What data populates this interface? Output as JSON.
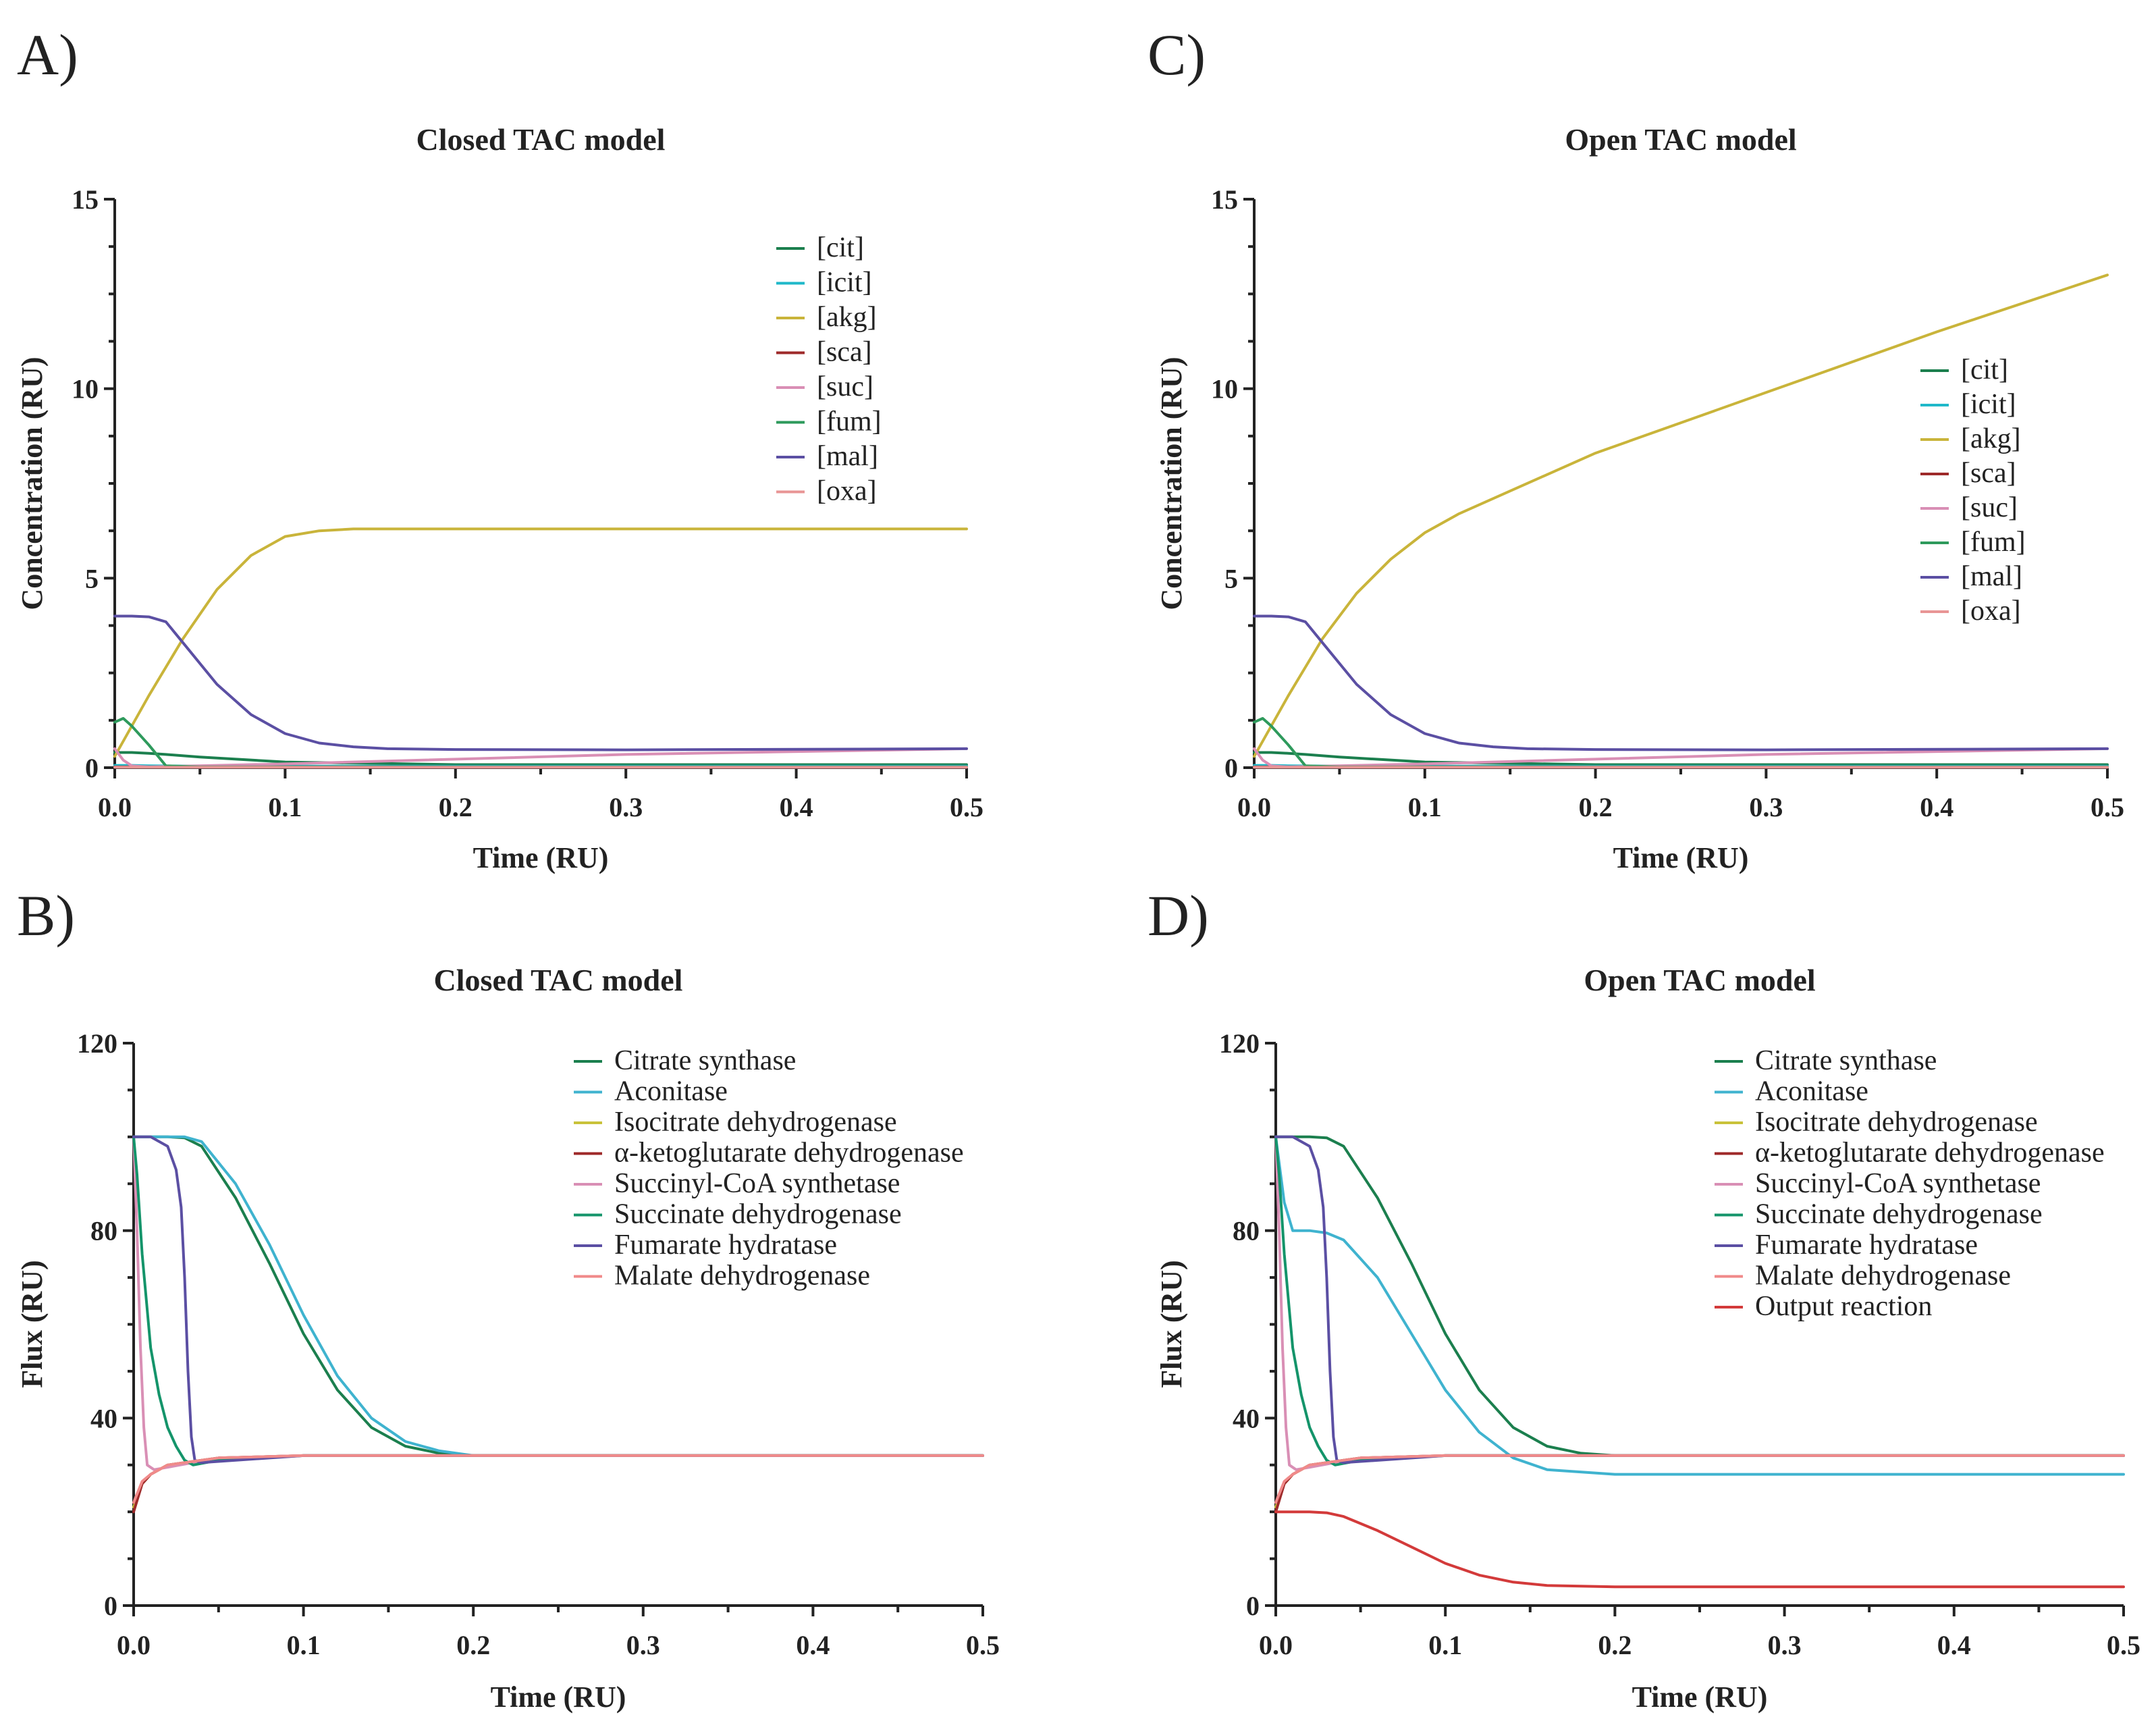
{
  "figure": {
    "panel_letters": [
      "A)",
      "B)",
      "C)",
      "D)"
    ]
  },
  "chart_data": [
    {
      "panel": "A)",
      "type": "line",
      "title": "Closed TAC model",
      "xlabel": "Time (RU)",
      "ylabel": "Concentration (RU)",
      "xlim": [
        0,
        0.5
      ],
      "ylim": [
        0,
        15
      ],
      "xticks": [
        0,
        0.1,
        0.2,
        0.3,
        0.4,
        0.5
      ],
      "xtick_labels": [
        "0.0",
        "0.1",
        "0.2",
        "0.3",
        "0.4",
        "0.5"
      ],
      "yticks": [
        0,
        5,
        10,
        15
      ],
      "ytick_labels": [
        "0",
        "5",
        "10",
        "15"
      ],
      "legend_position": "top-right",
      "series": [
        {
          "name": "[cit]",
          "color": "#1b7f4e",
          "x": [
            0,
            0.005,
            0.01,
            0.02,
            0.03,
            0.05,
            0.1,
            0.2,
            0.5
          ],
          "values": [
            0.4,
            0.4,
            0.4,
            0.38,
            0.35,
            0.28,
            0.15,
            0.08,
            0.08
          ]
        },
        {
          "name": "[icit]",
          "color": "#1fb8c9",
          "x": [
            0,
            0.01,
            0.02,
            0.05,
            0.1,
            0.5
          ],
          "values": [
            0.06,
            0.06,
            0.05,
            0.04,
            0.04,
            0.04
          ]
        },
        {
          "name": "[akg]",
          "color": "#c9b43a",
          "x": [
            0,
            0.02,
            0.04,
            0.06,
            0.08,
            0.1,
            0.12,
            0.14,
            0.16,
            0.2,
            0.3,
            0.5
          ],
          "values": [
            0.3,
            1.9,
            3.4,
            4.7,
            5.6,
            6.1,
            6.25,
            6.3,
            6.3,
            6.3,
            6.3,
            6.3
          ]
        },
        {
          "name": "[sca]",
          "color": "#9e2a2a",
          "x": [
            0,
            0.01,
            0.05,
            0.1,
            0.5
          ],
          "values": [
            0.02,
            0.02,
            0.02,
            0.02,
            0.02
          ]
        },
        {
          "name": "[suc]",
          "color": "#d98fb5",
          "x": [
            0,
            0.005,
            0.01,
            0.02,
            0.1,
            0.3,
            0.5
          ],
          "values": [
            0.5,
            0.2,
            0.05,
            0.02,
            0.1,
            0.35,
            0.5
          ]
        },
        {
          "name": "[fum]",
          "color": "#2e9a5c",
          "x": [
            0,
            0.005,
            0.01,
            0.02,
            0.03,
            0.05,
            0.5
          ],
          "values": [
            1.2,
            1.3,
            1.1,
            0.6,
            0.05,
            0.02,
            0.02
          ]
        },
        {
          "name": "[mal]",
          "color": "#5b4fa3",
          "x": [
            0,
            0.01,
            0.02,
            0.03,
            0.04,
            0.06,
            0.08,
            0.1,
            0.12,
            0.14,
            0.16,
            0.2,
            0.3,
            0.5
          ],
          "values": [
            4.0,
            4.0,
            3.98,
            3.85,
            3.3,
            2.2,
            1.4,
            0.9,
            0.65,
            0.55,
            0.5,
            0.48,
            0.47,
            0.5
          ]
        },
        {
          "name": "[oxa]",
          "color": "#e89595",
          "x": [
            0,
            0.01,
            0.05,
            0.1,
            0.5
          ],
          "values": [
            0.01,
            0.01,
            0.01,
            0.01,
            0.01
          ]
        }
      ]
    },
    {
      "panel": "B)",
      "type": "line",
      "title": "Closed TAC model",
      "xlabel": "Time (RU)",
      "ylabel": "Flux (RU)",
      "xlim": [
        0,
        0.5
      ],
      "ylim": [
        0,
        120
      ],
      "xticks": [
        0,
        0.1,
        0.2,
        0.3,
        0.4,
        0.5
      ],
      "xtick_labels": [
        "0.0",
        "0.1",
        "0.2",
        "0.3",
        "0.4",
        "0.5"
      ],
      "yticks": [
        0,
        40,
        80,
        120
      ],
      "ytick_labels": [
        "0",
        "40",
        "80",
        "120"
      ],
      "legend_position": "top-right",
      "series": [
        {
          "name": "Citrate synthase",
          "color": "#1b7f4e",
          "x": [
            0,
            0.02,
            0.03,
            0.04,
            0.06,
            0.08,
            0.1,
            0.12,
            0.14,
            0.16,
            0.18,
            0.2,
            0.5
          ],
          "values": [
            100,
            100,
            99.8,
            98,
            87,
            73,
            58,
            46,
            38,
            34,
            32.5,
            32,
            32
          ]
        },
        {
          "name": "Aconitase",
          "color": "#3fb3cf",
          "x": [
            0,
            0.02,
            0.03,
            0.04,
            0.06,
            0.08,
            0.1,
            0.12,
            0.14,
            0.16,
            0.18,
            0.2,
            0.5
          ],
          "values": [
            100,
            100,
            100,
            99,
            90,
            77,
            62,
            49,
            40,
            35,
            33,
            32,
            32
          ]
        },
        {
          "name": "Isocitrate dehydrogenase",
          "color": "#c9c23a",
          "x": [
            0,
            0.005,
            0.01,
            0.02,
            0.05,
            0.1,
            0.2,
            0.5
          ],
          "values": [
            21,
            26,
            28,
            30,
            31.5,
            32,
            32,
            32
          ]
        },
        {
          "name": "α-ketoglutarate dehydrogenase",
          "color": "#9e2a2a",
          "x": [
            0,
            0.005,
            0.01,
            0.02,
            0.05,
            0.1,
            0.2,
            0.5
          ],
          "values": [
            20,
            26,
            28,
            30,
            31.5,
            32,
            32,
            32
          ]
        },
        {
          "name": "Succinyl-CoA synthetase",
          "color": "#d98fb5",
          "x": [
            0,
            0.002,
            0.004,
            0.006,
            0.008,
            0.012,
            0.02,
            0.05,
            0.1,
            0.5
          ],
          "values": [
            100,
            80,
            55,
            38,
            30,
            29,
            29.5,
            31.5,
            32,
            32
          ]
        },
        {
          "name": "Succinate dehydrogenase",
          "color": "#14946a",
          "x": [
            0,
            0.002,
            0.005,
            0.01,
            0.015,
            0.02,
            0.025,
            0.03,
            0.035,
            0.05,
            0.1,
            0.5
          ],
          "values": [
            100,
            92,
            75,
            55,
            45,
            38,
            34,
            31,
            30,
            31,
            32,
            32
          ]
        },
        {
          "name": "Fumarate hydratase",
          "color": "#5b4fa3",
          "x": [
            0,
            0.01,
            0.02,
            0.025,
            0.028,
            0.03,
            0.032,
            0.034,
            0.036,
            0.04,
            0.1,
            0.5
          ],
          "values": [
            100,
            100,
            98,
            93,
            85,
            70,
            50,
            36,
            31,
            30.5,
            32,
            32
          ]
        },
        {
          "name": "Malate dehydrogenase",
          "color": "#f08a8a",
          "x": [
            0,
            0.005,
            0.01,
            0.02,
            0.05,
            0.1,
            0.5
          ],
          "values": [
            22,
            26.5,
            28,
            30,
            31.5,
            32,
            32
          ]
        }
      ]
    },
    {
      "panel": "C)",
      "type": "line",
      "title": "Open TAC model",
      "xlabel": "Time (RU)",
      "ylabel": "Concentration (RU)",
      "xlim": [
        0,
        0.5
      ],
      "ylim": [
        0,
        15
      ],
      "xticks": [
        0,
        0.1,
        0.2,
        0.3,
        0.4,
        0.5
      ],
      "xtick_labels": [
        "0.0",
        "0.1",
        "0.2",
        "0.3",
        "0.4",
        "0.5"
      ],
      "yticks": [
        0,
        5,
        10,
        15
      ],
      "ytick_labels": [
        "0",
        "5",
        "10",
        "15"
      ],
      "legend_position": "right",
      "series": [
        {
          "name": "[cit]",
          "color": "#1b7f4e",
          "x": [
            0,
            0.005,
            0.01,
            0.02,
            0.03,
            0.05,
            0.1,
            0.2,
            0.5
          ],
          "values": [
            0.4,
            0.4,
            0.4,
            0.38,
            0.35,
            0.28,
            0.15,
            0.08,
            0.08
          ]
        },
        {
          "name": "[icit]",
          "color": "#1fb8c9",
          "x": [
            0,
            0.01,
            0.02,
            0.05,
            0.1,
            0.5
          ],
          "values": [
            0.06,
            0.06,
            0.05,
            0.04,
            0.04,
            0.04
          ]
        },
        {
          "name": "[akg]",
          "color": "#c9b43a",
          "x": [
            0,
            0.02,
            0.04,
            0.06,
            0.08,
            0.1,
            0.12,
            0.15,
            0.2,
            0.3,
            0.4,
            0.5
          ],
          "values": [
            0.3,
            1.9,
            3.4,
            4.6,
            5.5,
            6.2,
            6.7,
            7.3,
            8.3,
            9.9,
            11.5,
            13.0
          ]
        },
        {
          "name": "[sca]",
          "color": "#9e2a2a",
          "x": [
            0,
            0.01,
            0.05,
            0.1,
            0.5
          ],
          "values": [
            0.02,
            0.02,
            0.02,
            0.02,
            0.02
          ]
        },
        {
          "name": "[suc]",
          "color": "#d98fb5",
          "x": [
            0,
            0.005,
            0.01,
            0.02,
            0.1,
            0.3,
            0.5
          ],
          "values": [
            0.5,
            0.2,
            0.05,
            0.02,
            0.1,
            0.35,
            0.5
          ]
        },
        {
          "name": "[fum]",
          "color": "#2e9a5c",
          "x": [
            0,
            0.005,
            0.01,
            0.02,
            0.03,
            0.05,
            0.5
          ],
          "values": [
            1.2,
            1.3,
            1.1,
            0.6,
            0.05,
            0.02,
            0.02
          ]
        },
        {
          "name": "[mal]",
          "color": "#5b4fa3",
          "x": [
            0,
            0.01,
            0.02,
            0.03,
            0.04,
            0.06,
            0.08,
            0.1,
            0.12,
            0.14,
            0.16,
            0.2,
            0.3,
            0.5
          ],
          "values": [
            4.0,
            4.0,
            3.98,
            3.85,
            3.3,
            2.2,
            1.4,
            0.9,
            0.65,
            0.55,
            0.5,
            0.48,
            0.47,
            0.5
          ]
        },
        {
          "name": "[oxa]",
          "color": "#e89595",
          "x": [
            0,
            0.01,
            0.05,
            0.1,
            0.5
          ],
          "values": [
            0.01,
            0.01,
            0.01,
            0.01,
            0.01
          ]
        }
      ]
    },
    {
      "panel": "D)",
      "type": "line",
      "title": "Open TAC model",
      "xlabel": "Time (RU)",
      "ylabel": "Flux (RU)",
      "xlim": [
        0,
        0.5
      ],
      "ylim": [
        0,
        120
      ],
      "xticks": [
        0,
        0.1,
        0.2,
        0.3,
        0.4,
        0.5
      ],
      "xtick_labels": [
        "0.0",
        "0.1",
        "0.2",
        "0.3",
        "0.4",
        "0.5"
      ],
      "yticks": [
        0,
        40,
        80,
        120
      ],
      "ytick_labels": [
        "0",
        "40",
        "80",
        "120"
      ],
      "legend_position": "top-right",
      "series": [
        {
          "name": "Citrate synthase",
          "color": "#1b7f4e",
          "x": [
            0,
            0.02,
            0.03,
            0.04,
            0.06,
            0.08,
            0.1,
            0.12,
            0.14,
            0.16,
            0.18,
            0.2,
            0.5
          ],
          "values": [
            100,
            100,
            99.8,
            98,
            87,
            73,
            58,
            46,
            38,
            34,
            32.5,
            32,
            32
          ]
        },
        {
          "name": "Aconitase",
          "color": "#3fb3cf",
          "x": [
            0,
            0.005,
            0.01,
            0.02,
            0.03,
            0.04,
            0.06,
            0.08,
            0.1,
            0.12,
            0.14,
            0.16,
            0.2,
            0.3,
            0.5
          ],
          "values": [
            100,
            86,
            80,
            80,
            79.5,
            78,
            70,
            58,
            46,
            37,
            31.5,
            29,
            28,
            28,
            28
          ]
        },
        {
          "name": "Isocitrate dehydrogenase",
          "color": "#c9c23a",
          "x": [
            0,
            0.005,
            0.01,
            0.02,
            0.05,
            0.1,
            0.2,
            0.5
          ],
          "values": [
            21,
            26,
            28,
            30,
            31.5,
            32,
            32,
            32
          ]
        },
        {
          "name": "α-ketoglutarate dehydrogenase",
          "color": "#9e2a2a",
          "x": [
            0,
            0.005,
            0.01,
            0.02,
            0.05,
            0.1,
            0.2,
            0.5
          ],
          "values": [
            20,
            26,
            28,
            30,
            31.5,
            32,
            32,
            32
          ]
        },
        {
          "name": "Succinyl-CoA synthetase",
          "color": "#d98fb5",
          "x": [
            0,
            0.002,
            0.004,
            0.006,
            0.008,
            0.012,
            0.02,
            0.05,
            0.1,
            0.5
          ],
          "values": [
            100,
            80,
            55,
            38,
            30,
            29,
            29.5,
            31.5,
            32,
            32
          ]
        },
        {
          "name": "Succinate dehydrogenase",
          "color": "#14946a",
          "x": [
            0,
            0.002,
            0.005,
            0.01,
            0.015,
            0.02,
            0.025,
            0.03,
            0.035,
            0.05,
            0.1,
            0.5
          ],
          "values": [
            100,
            92,
            75,
            55,
            45,
            38,
            34,
            31,
            30,
            31,
            32,
            32
          ]
        },
        {
          "name": "Fumarate hydratase",
          "color": "#5b4fa3",
          "x": [
            0,
            0.01,
            0.02,
            0.025,
            0.028,
            0.03,
            0.032,
            0.034,
            0.036,
            0.04,
            0.1,
            0.5
          ],
          "values": [
            100,
            100,
            98,
            93,
            85,
            70,
            50,
            36,
            31,
            30.5,
            32,
            32
          ]
        },
        {
          "name": "Malate dehydrogenase",
          "color": "#f08a8a",
          "x": [
            0,
            0.005,
            0.01,
            0.02,
            0.05,
            0.1,
            0.5
          ],
          "values": [
            22,
            26.5,
            28,
            30,
            31.5,
            32,
            32
          ]
        },
        {
          "name": "Output reaction",
          "color": "#d33a3a",
          "x": [
            0,
            0.02,
            0.03,
            0.04,
            0.06,
            0.08,
            0.1,
            0.12,
            0.14,
            0.16,
            0.2,
            0.3,
            0.5
          ],
          "values": [
            20,
            20,
            19.8,
            19,
            16,
            12.5,
            9,
            6.5,
            5,
            4.3,
            4,
            4,
            4
          ]
        }
      ]
    }
  ]
}
